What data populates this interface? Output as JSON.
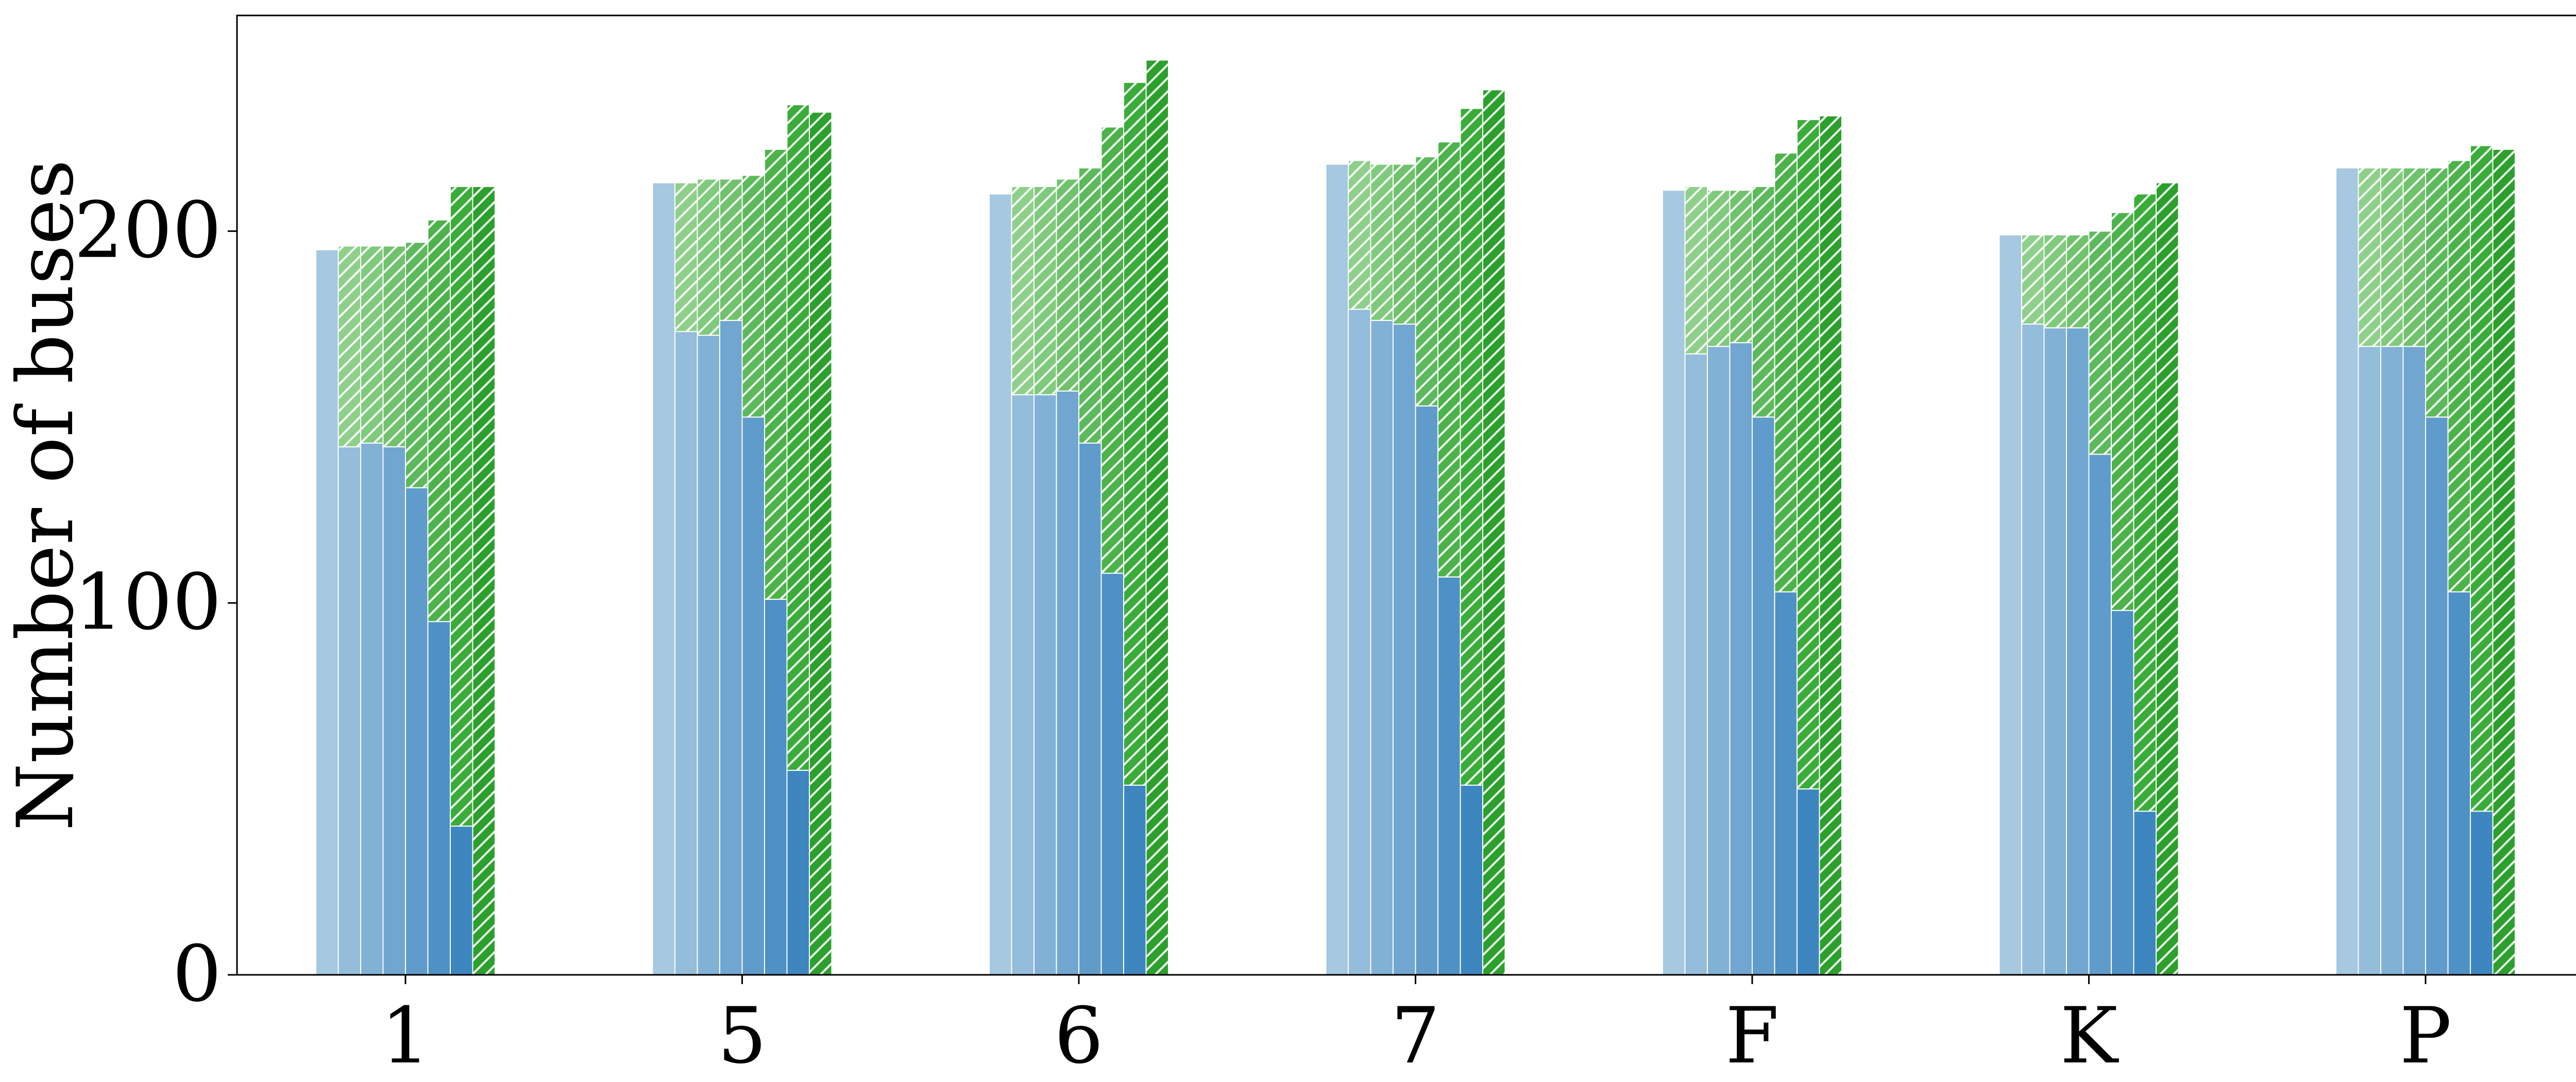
{
  "chart_data": {
    "type": "bar",
    "title": "",
    "xlabel": "",
    "ylabel": "Number of buses",
    "ylim": [
      0,
      258
    ],
    "yticks": [
      0,
      100,
      200
    ],
    "ytick_labels": [
      "0",
      "100",
      "200"
    ],
    "categories": [
      "1",
      "5",
      "6",
      "7",
      "F",
      "K",
      "P"
    ],
    "series_count_per_category": 8,
    "blue_colors": [
      "#a6c8e1",
      "#94bcdb",
      "#82b1d6",
      "#71a6d0",
      "#609ccb",
      "#4e91c5",
      "#3d86c0",
      "#3a84bf"
    ],
    "green_colors": [
      "#98d595",
      "#8ed08a",
      "#7fca7c",
      "#70c26c",
      "#5cba5c",
      "#4cb34b",
      "#3aac3a",
      "#2ca02c"
    ],
    "series": [
      {
        "name": "1",
        "blue": [
          195,
          142,
          143,
          142,
          131,
          95,
          40,
          0
        ],
        "total": [
          195,
          196,
          196,
          196,
          197,
          203,
          212,
          212
        ]
      },
      {
        "name": "5",
        "blue": [
          213,
          173,
          172,
          176,
          150,
          101,
          55,
          0
        ],
        "total": [
          213,
          213,
          214,
          214,
          215,
          222,
          234,
          232
        ]
      },
      {
        "name": "6",
        "blue": [
          210,
          156,
          156,
          157,
          143,
          108,
          51,
          0
        ],
        "total": [
          210,
          212,
          212,
          214,
          217,
          228,
          240,
          246
        ]
      },
      {
        "name": "7",
        "blue": [
          218,
          179,
          176,
          175,
          153,
          107,
          51,
          0
        ],
        "total": [
          218,
          219,
          218,
          218,
          220,
          224,
          233,
          238
        ]
      },
      {
        "name": "F",
        "blue": [
          211,
          167,
          169,
          170,
          150,
          103,
          50,
          0
        ],
        "total": [
          211,
          212,
          211,
          211,
          212,
          221,
          230,
          231
        ]
      },
      {
        "name": "K",
        "blue": [
          199,
          175,
          174,
          174,
          140,
          98,
          44,
          0
        ],
        "total": [
          199,
          199,
          199,
          199,
          200,
          205,
          210,
          213
        ]
      },
      {
        "name": "P",
        "blue": [
          217,
          169,
          169,
          169,
          150,
          103,
          44,
          0
        ],
        "total": [
          217,
          217,
          217,
          217,
          217,
          219,
          223,
          222
        ]
      }
    ]
  }
}
